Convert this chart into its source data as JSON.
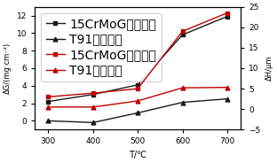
{
  "x": [
    300,
    400,
    500,
    600,
    700
  ],
  "y_15CrMoG_weight": [
    2.2,
    3.0,
    4.1,
    9.8,
    11.9
  ],
  "y_T91_weight": [
    0.0,
    -0.2,
    0.9,
    2.1,
    2.5
  ],
  "y_15CrMoG_thick": [
    3.0,
    3.9,
    5.0,
    19.0,
    23.5
  ],
  "y_T91_thick": [
    0.5,
    0.5,
    2.0,
    5.2,
    5.3
  ],
  "xlabel": "T/℃",
  "ylabel_left": "ΔG/(mg·cm⁻²)",
  "ylabel_right": "ΔH/μm",
  "ylim_left": [
    -1,
    13
  ],
  "ylim_right": [
    -5,
    25
  ],
  "yticks_left": [
    0,
    2,
    4,
    6,
    8,
    10,
    12
  ],
  "yticks_right": [
    -5,
    0,
    5,
    10,
    15,
    20,
    25
  ],
  "legend_15CrMoG_weight": "15CrMoG腹蚀增重",
  "legend_T91_weight": "T91腹蚀增重",
  "legend_15CrMoG_thick": "15CrMoG腹蚀增厚",
  "legend_T91_thick": "T91腹蚀增厚",
  "color_black": "#1a1a1a",
  "color_red": "#c00000",
  "bg_color": "#ffffff"
}
